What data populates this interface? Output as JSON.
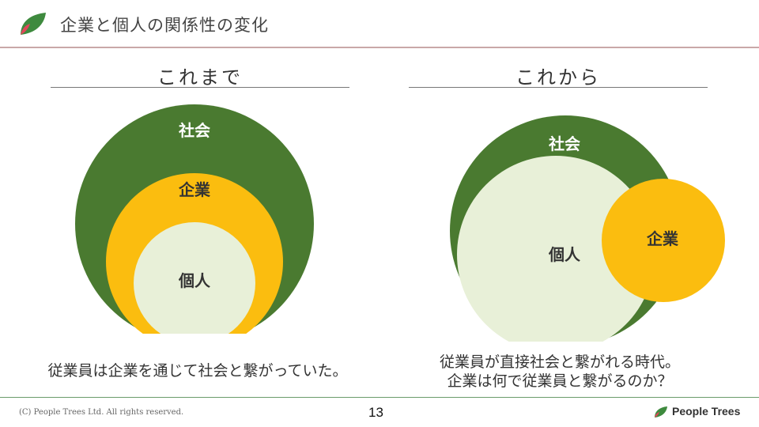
{
  "header": {
    "title": "企業と個人の関係性の変化",
    "logo_icon": "leaf-logo-icon"
  },
  "colors": {
    "society_green": "#4a7a30",
    "company_yellow": "#fbbd0f",
    "individual_pale": "#e8f0d8",
    "header_rule": "#c9a8a8"
  },
  "before": {
    "heading": "これまで",
    "labels": {
      "society": "社会",
      "company": "企業",
      "individual": "個人"
    },
    "caption": "従業員は企業を通じて社会と繋がっていた。"
  },
  "after": {
    "heading": "これから",
    "labels": {
      "society": "社会",
      "individual": "個人",
      "company": "企業"
    },
    "caption_lines": [
      "従業員が直接社会と繋がれる時代。",
      "企業は何で従業員と繋がるのか？"
    ]
  },
  "footer": {
    "copyright": "(C) People Trees Ltd. All rights reserved.",
    "page_number": "13",
    "brand_name": "People Trees"
  }
}
